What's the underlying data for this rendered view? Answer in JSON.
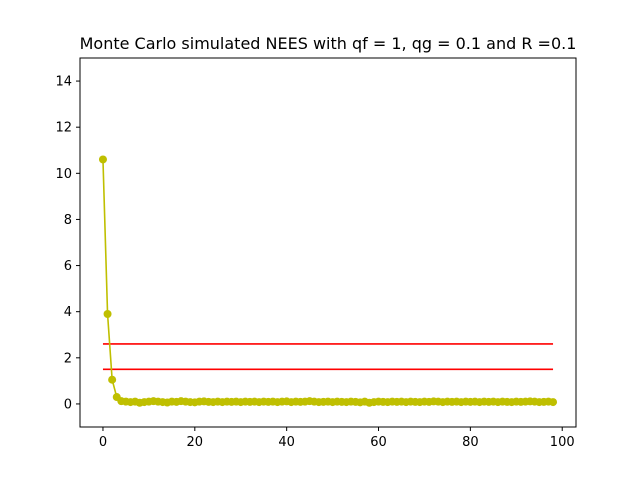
{
  "chart_data": {
    "type": "line",
    "title": "Monte Carlo simulated NEES with qf = 1, qg = 0.1 and R =0.1",
    "xlabel": "",
    "ylabel": "",
    "xlim": [
      -5,
      103
    ],
    "ylim": [
      -1,
      15
    ],
    "x_ticks": [
      0,
      20,
      40,
      60,
      80,
      100
    ],
    "y_ticks": [
      0,
      2,
      4,
      6,
      8,
      10,
      12,
      14
    ],
    "grid": false,
    "colors": {
      "series": "#bfbf00",
      "bounds": "#ff0000",
      "axes": "#000000"
    },
    "series": [
      {
        "marker": "circle",
        "x": [
          0,
          1,
          2,
          3,
          4,
          5,
          6,
          7,
          8,
          9,
          10,
          11,
          12,
          13,
          14,
          15,
          16,
          17,
          18,
          19,
          20,
          21,
          22,
          23,
          24,
          25,
          26,
          27,
          28,
          29,
          30,
          31,
          32,
          33,
          34,
          35,
          36,
          37,
          38,
          39,
          40,
          41,
          42,
          43,
          44,
          45,
          46,
          47,
          48,
          49,
          50,
          51,
          52,
          53,
          54,
          55,
          56,
          57,
          58,
          59,
          60,
          61,
          62,
          63,
          64,
          65,
          66,
          67,
          68,
          69,
          70,
          71,
          72,
          73,
          74,
          75,
          76,
          77,
          78,
          79,
          80,
          81,
          82,
          83,
          84,
          85,
          86,
          87,
          88,
          89,
          90,
          91,
          92,
          93,
          94,
          95,
          96,
          97,
          98
        ],
        "values": [
          10.6,
          3.9,
          1.05,
          0.3,
          0.12,
          0.1,
          0.08,
          0.1,
          0.05,
          0.08,
          0.1,
          0.12,
          0.1,
          0.08,
          0.06,
          0.1,
          0.09,
          0.12,
          0.1,
          0.08,
          0.07,
          0.1,
          0.11,
          0.09,
          0.08,
          0.1,
          0.08,
          0.1,
          0.09,
          0.1,
          0.08,
          0.1,
          0.09,
          0.1,
          0.08,
          0.1,
          0.09,
          0.1,
          0.08,
          0.1,
          0.11,
          0.08,
          0.1,
          0.09,
          0.1,
          0.12,
          0.1,
          0.08,
          0.09,
          0.1,
          0.08,
          0.1,
          0.09,
          0.08,
          0.1,
          0.09,
          0.07,
          0.1,
          0.05,
          0.08,
          0.1,
          0.09,
          0.08,
          0.1,
          0.09,
          0.1,
          0.08,
          0.1,
          0.09,
          0.08,
          0.1,
          0.09,
          0.11,
          0.1,
          0.08,
          0.1,
          0.09,
          0.1,
          0.08,
          0.1,
          0.09,
          0.1,
          0.08,
          0.1,
          0.09,
          0.1,
          0.08,
          0.1,
          0.09,
          0.08,
          0.1,
          0.09,
          0.1,
          0.11,
          0.1,
          0.08,
          0.09,
          0.1,
          0.08
        ]
      }
    ],
    "bounds": [
      {
        "x": [
          0,
          98
        ],
        "y": [
          2.6,
          2.6
        ]
      },
      {
        "x": [
          0,
          98
        ],
        "y": [
          1.5,
          1.5
        ]
      }
    ]
  }
}
